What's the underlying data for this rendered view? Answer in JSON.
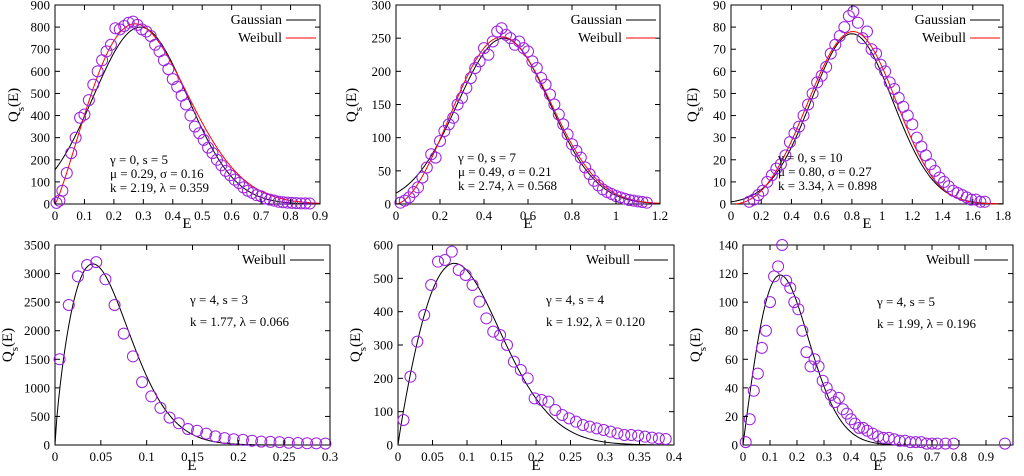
{
  "chart_data": [
    {
      "type": "scatter",
      "xlabel": "E",
      "ylabel": "Q_s(E)",
      "xlim": [
        0,
        0.9
      ],
      "ylim": [
        0,
        900
      ],
      "xticks": [
        0,
        0.1,
        0.2,
        0.3,
        0.4,
        0.5,
        0.6,
        0.7,
        0.8,
        0.9
      ],
      "yticks": [
        0,
        100,
        200,
        300,
        400,
        500,
        600,
        700,
        800,
        900
      ],
      "legend": [
        "Gaussian",
        "Weibull"
      ],
      "annotations": [
        "γ = 0, s = 5",
        "μ = 0.29, σ = 0.16",
        "k = 2.19, λ = 0.359"
      ],
      "gaussian": {
        "mu": 0.29,
        "sigma": 0.16,
        "peak": 800
      },
      "weibull": {
        "k": 2.19,
        "lambda": 0.359,
        "peak": 815
      },
      "points": {
        "x": [
          0.005,
          0.015,
          0.025,
          0.04,
          0.055,
          0.07,
          0.085,
          0.1,
          0.115,
          0.13,
          0.145,
          0.16,
          0.175,
          0.19,
          0.205,
          0.22,
          0.235,
          0.25,
          0.265,
          0.28,
          0.295,
          0.31,
          0.325,
          0.34,
          0.355,
          0.37,
          0.385,
          0.4,
          0.415,
          0.43,
          0.445,
          0.46,
          0.475,
          0.49,
          0.505,
          0.52,
          0.535,
          0.55,
          0.565,
          0.58,
          0.595,
          0.61,
          0.625,
          0.64,
          0.655,
          0.67,
          0.685,
          0.7,
          0.715,
          0.73,
          0.745,
          0.76,
          0.775,
          0.79,
          0.805,
          0.82,
          0.835,
          0.85,
          0.865
        ],
        "y": [
          5,
          15,
          60,
          140,
          230,
          300,
          390,
          405,
          470,
          540,
          600,
          650,
          690,
          720,
          795,
          790,
          805,
          820,
          825,
          810,
          790,
          780,
          760,
          720,
          690,
          650,
          610,
          565,
          530,
          490,
          450,
          400,
          350,
          320,
          290,
          255,
          230,
          200,
          175,
          150,
          130,
          110,
          95,
          75,
          60,
          50,
          40,
          35,
          25,
          20,
          15,
          10,
          8,
          6,
          5,
          4,
          3,
          3,
          2
        ]
      }
    },
    {
      "type": "scatter",
      "xlabel": "E",
      "ylabel": "Q_s(E)",
      "xlim": [
        0,
        1.2
      ],
      "ylim": [
        0,
        300
      ],
      "xticks": [
        0,
        0.2,
        0.4,
        0.6,
        0.8,
        1,
        1.2
      ],
      "yticks": [
        0,
        50,
        100,
        150,
        200,
        250,
        300
      ],
      "legend": [
        "Gaussian",
        "Weibull"
      ],
      "annotations": [
        "γ = 0, s = 7",
        "μ = 0.49, σ = 0.21",
        "k = 2.74, λ = 0.568"
      ],
      "gaussian": {
        "mu": 0.49,
        "sigma": 0.21,
        "peak": 250
      },
      "weibull": {
        "k": 2.74,
        "lambda": 0.568,
        "peak": 252
      },
      "points": {
        "x": [
          0.02,
          0.04,
          0.06,
          0.08,
          0.1,
          0.12,
          0.14,
          0.16,
          0.18,
          0.2,
          0.22,
          0.24,
          0.26,
          0.28,
          0.3,
          0.32,
          0.34,
          0.36,
          0.38,
          0.4,
          0.42,
          0.44,
          0.46,
          0.48,
          0.5,
          0.52,
          0.54,
          0.56,
          0.58,
          0.6,
          0.62,
          0.64,
          0.66,
          0.68,
          0.7,
          0.72,
          0.74,
          0.76,
          0.78,
          0.8,
          0.82,
          0.84,
          0.86,
          0.88,
          0.9,
          0.92,
          0.94,
          0.96,
          0.98,
          1.0,
          1.02,
          1.04,
          1.06,
          1.08,
          1.1,
          1.12,
          1.14
        ],
        "y": [
          2,
          5,
          10,
          18,
          25,
          40,
          55,
          75,
          70,
          95,
          110,
          120,
          130,
          150,
          160,
          175,
          190,
          205,
          215,
          235,
          225,
          245,
          260,
          265,
          255,
          250,
          240,
          245,
          235,
          230,
          215,
          205,
          190,
          180,
          165,
          150,
          135,
          120,
          105,
          90,
          80,
          70,
          55,
          45,
          35,
          28,
          22,
          18,
          15,
          12,
          10,
          8,
          6,
          5,
          4,
          3,
          2
        ]
      }
    },
    {
      "type": "scatter",
      "xlabel": "E",
      "ylabel": "Q_s(E)",
      "xlim": [
        0,
        1.8
      ],
      "ylim": [
        0,
        90
      ],
      "xticks": [
        0,
        0.2,
        0.4,
        0.6,
        0.8,
        1,
        1.2,
        1.4,
        1.6,
        1.8
      ],
      "yticks": [
        0,
        10,
        20,
        30,
        40,
        50,
        60,
        70,
        80,
        90
      ],
      "legend": [
        "Gaussian",
        "Weibull"
      ],
      "annotations": [
        "γ = 0, s = 10",
        "μ = 0.80, σ = 0.27",
        "k = 3.34, λ = 0.898"
      ],
      "gaussian": {
        "mu": 0.8,
        "sigma": 0.27,
        "peak": 77
      },
      "weibull": {
        "k": 3.34,
        "lambda": 0.898,
        "peak": 78
      },
      "points": {
        "x": [
          0.12,
          0.15,
          0.18,
          0.21,
          0.24,
          0.27,
          0.3,
          0.33,
          0.36,
          0.39,
          0.42,
          0.45,
          0.48,
          0.51,
          0.54,
          0.57,
          0.6,
          0.63,
          0.66,
          0.69,
          0.72,
          0.75,
          0.78,
          0.81,
          0.84,
          0.87,
          0.9,
          0.93,
          0.96,
          0.99,
          1.02,
          1.05,
          1.08,
          1.11,
          1.14,
          1.17,
          1.2,
          1.23,
          1.26,
          1.29,
          1.32,
          1.35,
          1.38,
          1.41,
          1.44,
          1.47,
          1.5,
          1.53,
          1.56,
          1.59,
          1.62,
          1.65,
          1.68
        ],
        "y": [
          1,
          2,
          4,
          6,
          10,
          13,
          16,
          18,
          22,
          28,
          32,
          35,
          40,
          45,
          50,
          55,
          58,
          62,
          68,
          72,
          76,
          80,
          85,
          87,
          82,
          75,
          78,
          70,
          68,
          63,
          60,
          55,
          52,
          48,
          44,
          40,
          36,
          30,
          26,
          22,
          18,
          15,
          12,
          10,
          8,
          6,
          5,
          4,
          3,
          2,
          2,
          1,
          1
        ]
      }
    },
    {
      "type": "scatter",
      "xlabel": "E",
      "ylabel": "Q_s(E)",
      "xlim": [
        0,
        0.3
      ],
      "ylim": [
        0,
        3500
      ],
      "xticks": [
        0,
        0.05,
        0.1,
        0.15,
        0.2,
        0.25,
        0.3
      ],
      "yticks": [
        0,
        500,
        1000,
        1500,
        2000,
        2500,
        3000,
        3500
      ],
      "legend": [
        "Weibull"
      ],
      "annotations": [
        "γ = 4, s = 3",
        "k = 1.77, λ = 0.066"
      ],
      "weibull": {
        "k": 1.77,
        "lambda": 0.066,
        "peak": 3170
      },
      "points": {
        "x": [
          0.005,
          0.015,
          0.025,
          0.035,
          0.045,
          0.055,
          0.065,
          0.075,
          0.085,
          0.095,
          0.105,
          0.115,
          0.125,
          0.135,
          0.145,
          0.155,
          0.165,
          0.175,
          0.185,
          0.195,
          0.205,
          0.215,
          0.225,
          0.235,
          0.245,
          0.255,
          0.265,
          0.275,
          0.285,
          0.295
        ],
        "y": [
          1500,
          2450,
          2950,
          3150,
          3200,
          2900,
          2450,
          1950,
          1550,
          1100,
          850,
          650,
          480,
          380,
          280,
          250,
          200,
          150,
          120,
          100,
          90,
          75,
          60,
          55,
          50,
          40,
          35,
          30,
          28,
          25
        ]
      }
    },
    {
      "type": "scatter",
      "xlabel": "E",
      "ylabel": "Q_s(E)",
      "xlim": [
        0,
        0.4
      ],
      "ylim": [
        0,
        600
      ],
      "xticks": [
        0,
        0.05,
        0.1,
        0.15,
        0.2,
        0.25,
        0.3,
        0.35,
        0.4
      ],
      "yticks": [
        0,
        100,
        200,
        300,
        400,
        500,
        600
      ],
      "legend": [
        "Weibull"
      ],
      "annotations": [
        "γ = 4, s = 4",
        "k = 1.92, λ = 0.120"
      ],
      "weibull": {
        "k": 1.92,
        "lambda": 0.12,
        "peak": 545
      },
      "points": {
        "x": [
          0.008,
          0.018,
          0.028,
          0.038,
          0.048,
          0.058,
          0.068,
          0.078,
          0.088,
          0.098,
          0.108,
          0.118,
          0.128,
          0.138,
          0.148,
          0.158,
          0.168,
          0.178,
          0.188,
          0.198,
          0.208,
          0.218,
          0.228,
          0.238,
          0.248,
          0.258,
          0.268,
          0.278,
          0.288,
          0.298,
          0.308,
          0.318,
          0.328,
          0.338,
          0.348,
          0.358,
          0.368,
          0.378,
          0.388
        ],
        "y": [
          75,
          205,
          310,
          390,
          480,
          550,
          555,
          580,
          525,
          510,
          480,
          430,
          380,
          340,
          330,
          300,
          250,
          225,
          200,
          140,
          135,
          130,
          105,
          90,
          80,
          70,
          60,
          55,
          50,
          45,
          40,
          35,
          30,
          30,
          28,
          25,
          22,
          20,
          18
        ]
      }
    },
    {
      "type": "scatter",
      "xlabel": "E",
      "ylabel": "Q_s(E)",
      "xlim": [
        0,
        1.0
      ],
      "ylim": [
        0,
        140
      ],
      "xticks": [
        0,
        0.1,
        0.2,
        0.3,
        0.4,
        0.5,
        0.6,
        0.7,
        0.8,
        0.9
      ],
      "yticks": [
        0,
        20,
        40,
        60,
        80,
        100,
        120,
        140
      ],
      "legend": [
        "Weibull"
      ],
      "annotations": [
        "γ = 4, s = 5",
        "k = 1.99, λ = 0.196"
      ],
      "weibull": {
        "k": 1.99,
        "lambda": 0.196,
        "peak": 119
      },
      "points": {
        "x": [
          0.01,
          0.025,
          0.04,
          0.055,
          0.07,
          0.085,
          0.1,
          0.115,
          0.13,
          0.145,
          0.16,
          0.175,
          0.19,
          0.205,
          0.22,
          0.235,
          0.25,
          0.265,
          0.28,
          0.295,
          0.31,
          0.325,
          0.34,
          0.355,
          0.37,
          0.385,
          0.4,
          0.415,
          0.43,
          0.445,
          0.46,
          0.48,
          0.5,
          0.52,
          0.54,
          0.56,
          0.58,
          0.6,
          0.62,
          0.64,
          0.66,
          0.68,
          0.7,
          0.72,
          0.75,
          0.78,
          0.97
        ],
        "y": [
          2,
          18,
          38,
          50,
          68,
          80,
          100,
          118,
          125,
          140,
          115,
          110,
          100,
          95,
          80,
          65,
          55,
          60,
          55,
          45,
          40,
          35,
          30,
          33,
          25,
          22,
          18,
          15,
          12,
          12,
          10,
          8,
          6,
          5,
          5,
          4,
          3,
          3,
          2,
          2,
          2,
          1,
          1,
          1,
          1,
          1,
          1
        ]
      }
    }
  ]
}
